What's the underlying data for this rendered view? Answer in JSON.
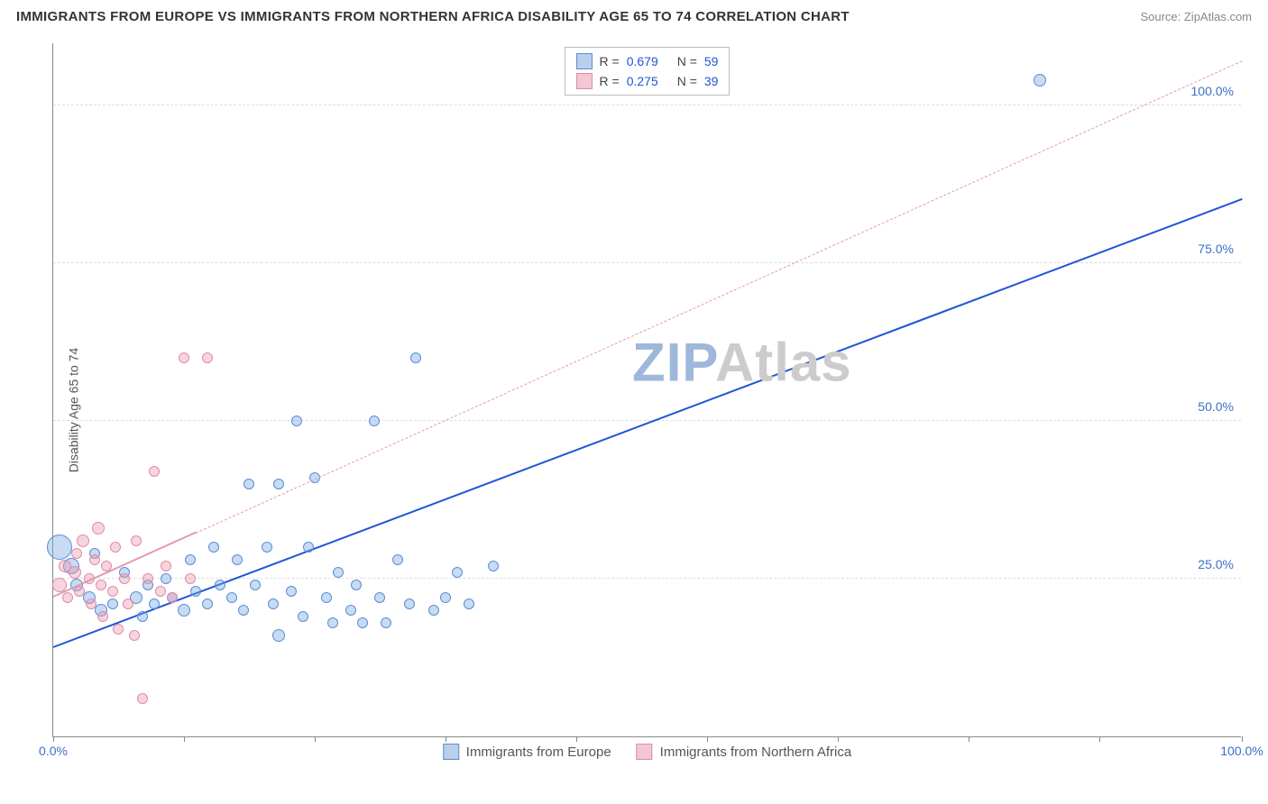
{
  "title": "IMMIGRANTS FROM EUROPE VS IMMIGRANTS FROM NORTHERN AFRICA DISABILITY AGE 65 TO 74 CORRELATION CHART",
  "source": "Source: ZipAtlas.com",
  "ylabel": "Disability Age 65 to 74",
  "watermark_a": "ZIP",
  "watermark_b": "Atlas",
  "chart": {
    "type": "scatter",
    "xlim": [
      0,
      100
    ],
    "ylim": [
      0,
      110
    ],
    "x_axis_labels": [
      {
        "pos": 0.0,
        "text": "0.0%"
      },
      {
        "pos": 100.0,
        "text": "100.0%"
      }
    ],
    "x_ticks": [
      0,
      11,
      22,
      33,
      44,
      55,
      66,
      77,
      88,
      100
    ],
    "y_gridlines": [
      {
        "v": 25.0,
        "label": "25.0%"
      },
      {
        "v": 50.0,
        "label": "50.0%"
      },
      {
        "v": 75.0,
        "label": "75.0%"
      },
      {
        "v": 100.0,
        "label": "100.0%"
      }
    ],
    "axis_label_color_blue": "#3b6fc9",
    "grid_color": "#dddddd",
    "series": [
      {
        "name": "Immigrants from Europe",
        "fill": "rgba(115,165,225,0.40)",
        "stroke": "#5a8dd6",
        "swatch_fill": "#b9cfea",
        "swatch_stroke": "#5a8dd6",
        "R": "0.679",
        "N": "59",
        "trend": {
          "x1": 0,
          "y1": 14,
          "x2": 100,
          "y2": 85,
          "dash": false,
          "color": "#1f56d6",
          "width": 2.5
        },
        "points": [
          {
            "x": 0.5,
            "y": 30,
            "r": 14
          },
          {
            "x": 1.5,
            "y": 27,
            "r": 9
          },
          {
            "x": 2,
            "y": 24,
            "r": 7
          },
          {
            "x": 3,
            "y": 22,
            "r": 7
          },
          {
            "x": 3.5,
            "y": 29,
            "r": 6
          },
          {
            "x": 4,
            "y": 20,
            "r": 7
          },
          {
            "x": 5,
            "y": 21,
            "r": 6
          },
          {
            "x": 6,
            "y": 26,
            "r": 6
          },
          {
            "x": 7,
            "y": 22,
            "r": 7
          },
          {
            "x": 7.5,
            "y": 19,
            "r": 6
          },
          {
            "x": 8,
            "y": 24,
            "r": 6
          },
          {
            "x": 8.5,
            "y": 21,
            "r": 6
          },
          {
            "x": 9.5,
            "y": 25,
            "r": 6
          },
          {
            "x": 10,
            "y": 22,
            "r": 6
          },
          {
            "x": 11,
            "y": 20,
            "r": 7
          },
          {
            "x": 11.5,
            "y": 28,
            "r": 6
          },
          {
            "x": 12,
            "y": 23,
            "r": 6
          },
          {
            "x": 13,
            "y": 21,
            "r": 6
          },
          {
            "x": 13.5,
            "y": 30,
            "r": 6
          },
          {
            "x": 14,
            "y": 24,
            "r": 6
          },
          {
            "x": 15,
            "y": 22,
            "r": 6
          },
          {
            "x": 15.5,
            "y": 28,
            "r": 6
          },
          {
            "x": 16,
            "y": 20,
            "r": 6
          },
          {
            "x": 16.5,
            "y": 40,
            "r": 6
          },
          {
            "x": 17,
            "y": 24,
            "r": 6
          },
          {
            "x": 18,
            "y": 30,
            "r": 6
          },
          {
            "x": 18.5,
            "y": 21,
            "r": 6
          },
          {
            "x": 19,
            "y": 16,
            "r": 7
          },
          {
            "x": 19,
            "y": 40,
            "r": 6
          },
          {
            "x": 20,
            "y": 23,
            "r": 6
          },
          {
            "x": 20.5,
            "y": 50,
            "r": 6
          },
          {
            "x": 21,
            "y": 19,
            "r": 6
          },
          {
            "x": 21.5,
            "y": 30,
            "r": 6
          },
          {
            "x": 22,
            "y": 41,
            "r": 6
          },
          {
            "x": 23,
            "y": 22,
            "r": 6
          },
          {
            "x": 23.5,
            "y": 18,
            "r": 6
          },
          {
            "x": 24,
            "y": 26,
            "r": 6
          },
          {
            "x": 25,
            "y": 20,
            "r": 6
          },
          {
            "x": 25.5,
            "y": 24,
            "r": 6
          },
          {
            "x": 26,
            "y": 18,
            "r": 6
          },
          {
            "x": 27,
            "y": 50,
            "r": 6
          },
          {
            "x": 27.5,
            "y": 22,
            "r": 6
          },
          {
            "x": 28,
            "y": 18,
            "r": 6
          },
          {
            "x": 29,
            "y": 28,
            "r": 6
          },
          {
            "x": 30,
            "y": 21,
            "r": 6
          },
          {
            "x": 30.5,
            "y": 60,
            "r": 6
          },
          {
            "x": 32,
            "y": 20,
            "r": 6
          },
          {
            "x": 33,
            "y": 22,
            "r": 6
          },
          {
            "x": 34,
            "y": 26,
            "r": 6
          },
          {
            "x": 35,
            "y": 21,
            "r": 6
          },
          {
            "x": 37,
            "y": 27,
            "r": 6
          },
          {
            "x": 83,
            "y": 104,
            "r": 7
          }
        ]
      },
      {
        "name": "Immigrants from Northern Africa",
        "fill": "rgba(235,150,175,0.40)",
        "stroke": "#e08aa5",
        "swatch_fill": "#f2c7d3",
        "swatch_stroke": "#e08aa5",
        "R": "0.275",
        "N": "39",
        "trend": {
          "x1": 0,
          "y1": 22,
          "x2": 100,
          "y2": 107,
          "dash": true,
          "color": "#e59ab0",
          "width": 1.5
        },
        "trend_solid_end": 12,
        "points": [
          {
            "x": 0.5,
            "y": 24,
            "r": 8
          },
          {
            "x": 1,
            "y": 27,
            "r": 7
          },
          {
            "x": 1.2,
            "y": 22,
            "r": 6
          },
          {
            "x": 1.8,
            "y": 26,
            "r": 7
          },
          {
            "x": 2,
            "y": 29,
            "r": 6
          },
          {
            "x": 2.2,
            "y": 23,
            "r": 6
          },
          {
            "x": 2.5,
            "y": 31,
            "r": 7
          },
          {
            "x": 3,
            "y": 25,
            "r": 6
          },
          {
            "x": 3.2,
            "y": 21,
            "r": 6
          },
          {
            "x": 3.5,
            "y": 28,
            "r": 6
          },
          {
            "x": 3.8,
            "y": 33,
            "r": 7
          },
          {
            "x": 4,
            "y": 24,
            "r": 6
          },
          {
            "x": 4.2,
            "y": 19,
            "r": 6
          },
          {
            "x": 4.5,
            "y": 27,
            "r": 6
          },
          {
            "x": 5,
            "y": 23,
            "r": 6
          },
          {
            "x": 5.2,
            "y": 30,
            "r": 6
          },
          {
            "x": 5.5,
            "y": 17,
            "r": 6
          },
          {
            "x": 6,
            "y": 25,
            "r": 6
          },
          {
            "x": 6.3,
            "y": 21,
            "r": 6
          },
          {
            "x": 6.8,
            "y": 16,
            "r": 6
          },
          {
            "x": 7,
            "y": 31,
            "r": 6
          },
          {
            "x": 7.5,
            "y": 6,
            "r": 6
          },
          {
            "x": 8,
            "y": 25,
            "r": 6
          },
          {
            "x": 8.5,
            "y": 42,
            "r": 6
          },
          {
            "x": 9,
            "y": 23,
            "r": 6
          },
          {
            "x": 9.5,
            "y": 27,
            "r": 6
          },
          {
            "x": 10,
            "y": 22,
            "r": 6
          },
          {
            "x": 11,
            "y": 60,
            "r": 6
          },
          {
            "x": 11.5,
            "y": 25,
            "r": 6
          },
          {
            "x": 13,
            "y": 60,
            "r": 6
          }
        ]
      }
    ]
  },
  "legend_labels": {
    "R_prefix": "R = ",
    "N_prefix": "N = "
  },
  "colors": {
    "stat_value": "#1f56d6",
    "text_dark": "#444444",
    "watermark_a": "#9db8da",
    "watermark_b": "#cccccc"
  }
}
